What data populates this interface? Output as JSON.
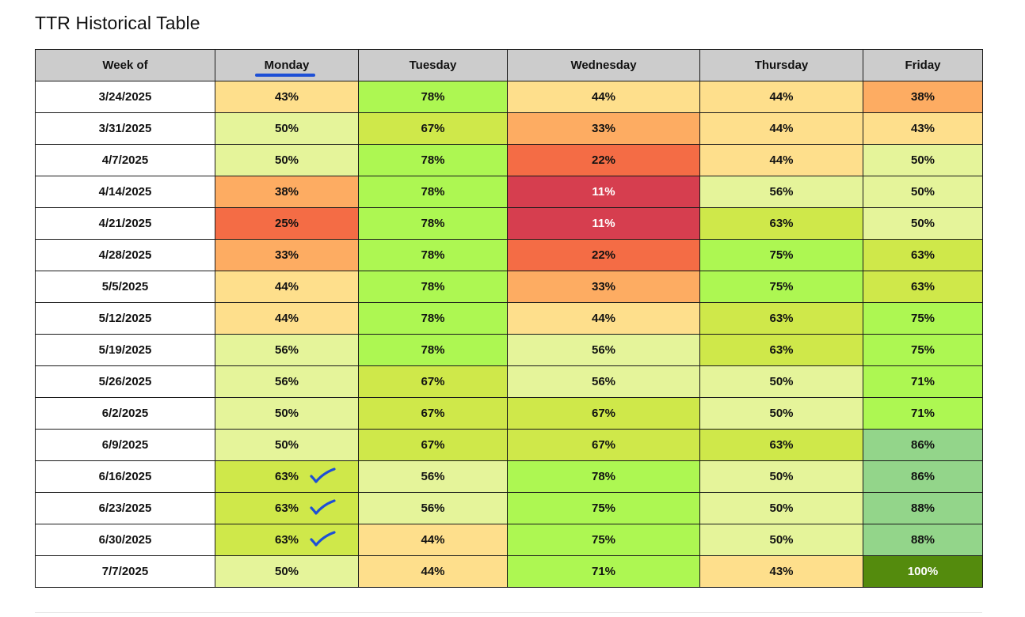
{
  "title": "TTR Historical Table",
  "headers": {
    "week": "Week of",
    "monday": "Monday",
    "tuesday": "Tuesday",
    "wednesday": "Wednesday",
    "thursday": "Thursday",
    "friday": "Friday"
  },
  "colors": {
    "header_bg": "#cccccc",
    "red": "#d63e4f",
    "orange_red": "#f46c45",
    "orange": "#fdac62",
    "light_orange": "#fedf8c",
    "pale_yellow": "#e5f49a",
    "yellow_green": "#cfe84a",
    "green": "#adf752",
    "soft_green": "#93d58a",
    "dark_green": "#548b0d",
    "annotation_blue": "#1d4fd6"
  },
  "annotations": {
    "monday_header_underline": "blue-underline",
    "checkmark_icon": "check-icon"
  },
  "rows": [
    {
      "week": "3/24/2025",
      "cells": [
        {
          "v": "43%",
          "c": "light_orange"
        },
        {
          "v": "78%",
          "c": "green"
        },
        {
          "v": "44%",
          "c": "light_orange"
        },
        {
          "v": "44%",
          "c": "light_orange"
        },
        {
          "v": "38%",
          "c": "orange"
        }
      ]
    },
    {
      "week": "3/31/2025",
      "cells": [
        {
          "v": "50%",
          "c": "pale_yellow"
        },
        {
          "v": "67%",
          "c": "yellow_green"
        },
        {
          "v": "33%",
          "c": "orange"
        },
        {
          "v": "44%",
          "c": "light_orange"
        },
        {
          "v": "43%",
          "c": "light_orange"
        }
      ]
    },
    {
      "week": "4/7/2025",
      "cells": [
        {
          "v": "50%",
          "c": "pale_yellow"
        },
        {
          "v": "78%",
          "c": "green"
        },
        {
          "v": "22%",
          "c": "orange_red"
        },
        {
          "v": "44%",
          "c": "light_orange"
        },
        {
          "v": "50%",
          "c": "pale_yellow"
        }
      ]
    },
    {
      "week": "4/14/2025",
      "cells": [
        {
          "v": "38%",
          "c": "orange"
        },
        {
          "v": "78%",
          "c": "green"
        },
        {
          "v": "11%",
          "c": "red"
        },
        {
          "v": "56%",
          "c": "pale_yellow"
        },
        {
          "v": "50%",
          "c": "pale_yellow"
        }
      ]
    },
    {
      "week": "4/21/2025",
      "cells": [
        {
          "v": "25%",
          "c": "orange_red"
        },
        {
          "v": "78%",
          "c": "green"
        },
        {
          "v": "11%",
          "c": "red"
        },
        {
          "v": "63%",
          "c": "yellow_green"
        },
        {
          "v": "50%",
          "c": "pale_yellow"
        }
      ]
    },
    {
      "week": "4/28/2025",
      "cells": [
        {
          "v": "33%",
          "c": "orange"
        },
        {
          "v": "78%",
          "c": "green"
        },
        {
          "v": "22%",
          "c": "orange_red"
        },
        {
          "v": "75%",
          "c": "green"
        },
        {
          "v": "63%",
          "c": "yellow_green"
        }
      ]
    },
    {
      "week": "5/5/2025",
      "cells": [
        {
          "v": "44%",
          "c": "light_orange"
        },
        {
          "v": "78%",
          "c": "green"
        },
        {
          "v": "33%",
          "c": "orange"
        },
        {
          "v": "75%",
          "c": "green"
        },
        {
          "v": "63%",
          "c": "yellow_green"
        }
      ]
    },
    {
      "week": "5/12/2025",
      "cells": [
        {
          "v": "44%",
          "c": "light_orange"
        },
        {
          "v": "78%",
          "c": "green"
        },
        {
          "v": "44%",
          "c": "light_orange"
        },
        {
          "v": "63%",
          "c": "yellow_green"
        },
        {
          "v": "75%",
          "c": "green"
        }
      ]
    },
    {
      "week": "5/19/2025",
      "cells": [
        {
          "v": "56%",
          "c": "pale_yellow"
        },
        {
          "v": "78%",
          "c": "green"
        },
        {
          "v": "56%",
          "c": "pale_yellow"
        },
        {
          "v": "63%",
          "c": "yellow_green"
        },
        {
          "v": "75%",
          "c": "green"
        }
      ]
    },
    {
      "week": "5/26/2025",
      "cells": [
        {
          "v": "56%",
          "c": "pale_yellow"
        },
        {
          "v": "67%",
          "c": "yellow_green"
        },
        {
          "v": "56%",
          "c": "pale_yellow"
        },
        {
          "v": "50%",
          "c": "pale_yellow"
        },
        {
          "v": "71%",
          "c": "green"
        }
      ]
    },
    {
      "week": "6/2/2025",
      "cells": [
        {
          "v": "50%",
          "c": "pale_yellow"
        },
        {
          "v": "67%",
          "c": "yellow_green"
        },
        {
          "v": "67%",
          "c": "yellow_green"
        },
        {
          "v": "50%",
          "c": "pale_yellow"
        },
        {
          "v": "71%",
          "c": "green"
        }
      ]
    },
    {
      "week": "6/9/2025",
      "cells": [
        {
          "v": "50%",
          "c": "pale_yellow"
        },
        {
          "v": "67%",
          "c": "yellow_green"
        },
        {
          "v": "67%",
          "c": "yellow_green"
        },
        {
          "v": "63%",
          "c": "yellow_green"
        },
        {
          "v": "86%",
          "c": "soft_green"
        }
      ]
    },
    {
      "week": "6/16/2025",
      "check": true,
      "cells": [
        {
          "v": "63%",
          "c": "yellow_green"
        },
        {
          "v": "56%",
          "c": "pale_yellow"
        },
        {
          "v": "78%",
          "c": "green"
        },
        {
          "v": "50%",
          "c": "pale_yellow"
        },
        {
          "v": "86%",
          "c": "soft_green"
        }
      ]
    },
    {
      "week": "6/23/2025",
      "check": true,
      "cells": [
        {
          "v": "63%",
          "c": "yellow_green"
        },
        {
          "v": "56%",
          "c": "pale_yellow"
        },
        {
          "v": "75%",
          "c": "green"
        },
        {
          "v": "50%",
          "c": "pale_yellow"
        },
        {
          "v": "88%",
          "c": "soft_green"
        }
      ]
    },
    {
      "week": "6/30/2025",
      "check": true,
      "cells": [
        {
          "v": "63%",
          "c": "yellow_green"
        },
        {
          "v": "44%",
          "c": "light_orange"
        },
        {
          "v": "75%",
          "c": "green"
        },
        {
          "v": "50%",
          "c": "pale_yellow"
        },
        {
          "v": "88%",
          "c": "soft_green"
        }
      ]
    },
    {
      "week": "7/7/2025",
      "cells": [
        {
          "v": "50%",
          "c": "pale_yellow"
        },
        {
          "v": "44%",
          "c": "light_orange"
        },
        {
          "v": "71%",
          "c": "green"
        },
        {
          "v": "43%",
          "c": "light_orange"
        },
        {
          "v": "100%",
          "c": "dark_green"
        }
      ]
    }
  ]
}
